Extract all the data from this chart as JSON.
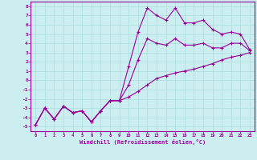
{
  "xlabel": "Windchill (Refroidissement éolien,°C)",
  "xlim": [
    -0.5,
    23.5
  ],
  "ylim": [
    -5.5,
    8.5
  ],
  "xticks": [
    0,
    1,
    2,
    3,
    4,
    5,
    6,
    7,
    8,
    9,
    10,
    11,
    12,
    13,
    14,
    15,
    16,
    17,
    18,
    19,
    20,
    21,
    22,
    23
  ],
  "yticks": [
    -5,
    -4,
    -3,
    -2,
    -1,
    0,
    1,
    2,
    3,
    4,
    5,
    6,
    7,
    8
  ],
  "bg_color": "#cceef0",
  "line_color": "#990099",
  "grid_color": "#aadddd",
  "line1_y": [
    -4.8,
    -3.0,
    -4.2,
    -2.8,
    -3.5,
    -3.3,
    -4.5,
    -3.3,
    -2.2,
    -2.2,
    -1.8,
    -1.2,
    -0.5,
    0.2,
    0.5,
    0.8,
    1.0,
    1.2,
    1.5,
    1.8,
    2.2,
    2.5,
    2.7,
    3.0
  ],
  "line2_y": [
    -4.8,
    -3.0,
    -4.2,
    -2.8,
    -3.5,
    -3.3,
    -4.5,
    -3.3,
    -2.2,
    -2.2,
    1.5,
    5.2,
    7.8,
    7.0,
    6.5,
    7.8,
    6.2,
    6.2,
    6.5,
    5.5,
    5.0,
    5.2,
    5.0,
    3.3
  ],
  "line3_y": [
    -4.8,
    -3.0,
    -4.2,
    -2.8,
    -3.5,
    -3.3,
    -4.5,
    -3.3,
    -2.2,
    -2.2,
    -0.5,
    2.2,
    4.5,
    4.0,
    3.8,
    4.5,
    3.8,
    3.8,
    4.0,
    3.5,
    3.5,
    4.0,
    4.0,
    3.2
  ]
}
